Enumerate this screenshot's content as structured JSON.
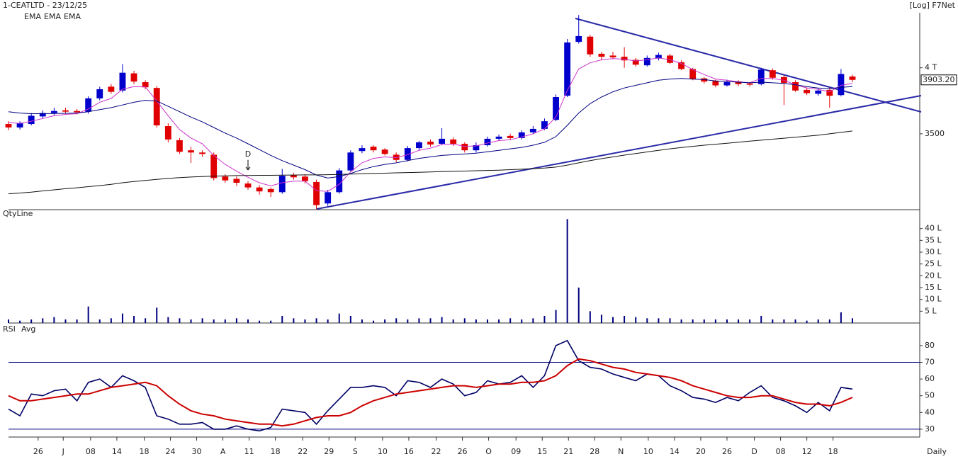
{
  "chart_data": [
    {
      "type": "candlestick",
      "title": "1-CEATLTD - 23/12/25",
      "subtitle": "[Log] F7Net",
      "log_scale": true,
      "ylim": [
        3002,
        4458
      ],
      "yticks": [
        {
          "value": 4000,
          "label": "4 T"
        },
        3500
      ],
      "up_color": "#0000cc",
      "down_color": "#e00000",
      "open": [
        3570,
        3545,
        3570,
        3625,
        3650,
        3670,
        3665,
        3660,
        3760,
        3850,
        3820,
        3955,
        3885,
        3840,
        3555,
        3455,
        3385,
        3370,
        3355,
        3210,
        3195,
        3165,
        3140,
        3130,
        3110,
        3220,
        3210,
        3175,
        3040,
        3110,
        3250,
        3380,
        3410,
        3390,
        3355,
        3320,
        3400,
        3445,
        3430,
        3460,
        3430,
        3385,
        3420,
        3465,
        3485,
        3470,
        3510,
        3535,
        3600,
        3780,
        4215,
        4260,
        4115,
        4100,
        4090,
        4065,
        4020,
        4075,
        4100,
        4045,
        3990,
        3915,
        3895,
        3860,
        3890,
        3875,
        3870,
        3980,
        3925,
        3885,
        3825,
        3795,
        3825,
        3785,
        3930
      ],
      "high": [
        3590,
        3590,
        3650,
        3670,
        3690,
        3690,
        3680,
        3775,
        3850,
        3870,
        4030,
        3975,
        3900,
        3855,
        3575,
        3470,
        3410,
        3385,
        3370,
        3225,
        3210,
        3180,
        3155,
        3140,
        3260,
        3235,
        3225,
        3190,
        3125,
        3265,
        3385,
        3420,
        3420,
        3400,
        3370,
        3415,
        3450,
        3460,
        3540,
        3475,
        3440,
        3440,
        3480,
        3495,
        3500,
        3525,
        3555,
        3610,
        3790,
        4240,
        4450,
        4275,
        4130,
        4130,
        4170,
        4080,
        4100,
        4125,
        4115,
        4060,
        4000,
        3925,
        3905,
        3905,
        3900,
        3885,
        4000,
        3995,
        3940,
        3900,
        3845,
        3840,
        3840,
        3990,
        3945
      ],
      "low": [
        3525,
        3530,
        3560,
        3610,
        3635,
        3645,
        3640,
        3645,
        3745,
        3795,
        3805,
        3870,
        3830,
        3545,
        3440,
        3360,
        3300,
        3340,
        3185,
        3170,
        3150,
        3125,
        3095,
        3080,
        3100,
        3190,
        3165,
        3005,
        3025,
        3100,
        3240,
        3365,
        3370,
        3350,
        3305,
        3310,
        3385,
        3410,
        3420,
        3415,
        3370,
        3370,
        3410,
        3450,
        3455,
        3460,
        3500,
        3525,
        3590,
        3770,
        4200,
        4090,
        4060,
        4070,
        4000,
        4010,
        4010,
        4060,
        4030,
        3980,
        3900,
        3875,
        3845,
        3850,
        3855,
        3850,
        3860,
        3905,
        3710,
        3810,
        3785,
        3780,
        3690,
        3775,
        3885
      ],
      "close": [
        3545,
        3575,
        3630,
        3650,
        3665,
        3660,
        3655,
        3760,
        3830,
        3810,
        3960,
        3890,
        3845,
        3560,
        3460,
        3375,
        3370,
        3360,
        3200,
        3185,
        3170,
        3140,
        3115,
        3110,
        3215,
        3205,
        3180,
        3030,
        3110,
        3250,
        3370,
        3400,
        3385,
        3360,
        3320,
        3400,
        3440,
        3425,
        3465,
        3430,
        3385,
        3420,
        3465,
        3480,
        3470,
        3510,
        3535,
        3590,
        3770,
        4210,
        4265,
        4110,
        4090,
        4085,
        4060,
        4025,
        4080,
        4105,
        4040,
        3990,
        3910,
        3890,
        3860,
        3885,
        3870,
        3865,
        3985,
        3920,
        3880,
        3820,
        3800,
        3820,
        3780,
        3950,
        3903.2
      ],
      "last_label": "3903.20",
      "annotation": "D",
      "annotation_index": 21,
      "series": [
        {
          "name": "EMA",
          "color": "#cc33cc",
          "values": [
            3580,
            3575,
            3590,
            3610,
            3630,
            3640,
            3645,
            3680,
            3730,
            3760,
            3830,
            3850,
            3848,
            3740,
            3630,
            3530,
            3470,
            3430,
            3350,
            3290,
            3245,
            3205,
            3170,
            3150,
            3170,
            3180,
            3180,
            3120,
            3115,
            3160,
            3240,
            3300,
            3330,
            3340,
            3335,
            3355,
            3385,
            3400,
            3425,
            3428,
            3412,
            3415,
            3435,
            3452,
            3458,
            3478,
            3500,
            3535,
            3620,
            3820,
            3990,
            4040,
            4065,
            4075,
            4070,
            4055,
            4065,
            4080,
            4065,
            4035,
            3985,
            3945,
            3910,
            3900,
            3888,
            3880,
            3915,
            3915,
            3900,
            3865,
            3840,
            3830,
            3810,
            3860,
            3875
          ]
        },
        {
          "name": "EMA",
          "color": "#000080",
          "values": [
            3660,
            3650,
            3645,
            3645,
            3647,
            3648,
            3650,
            3660,
            3675,
            3690,
            3710,
            3730,
            3745,
            3740,
            3700,
            3660,
            3620,
            3585,
            3545,
            3505,
            3470,
            3430,
            3390,
            3350,
            3315,
            3285,
            3255,
            3220,
            3200,
            3210,
            3230,
            3255,
            3275,
            3290,
            3300,
            3315,
            3330,
            3340,
            3350,
            3355,
            3360,
            3365,
            3375,
            3385,
            3395,
            3405,
            3420,
            3440,
            3480,
            3560,
            3650,
            3720,
            3770,
            3810,
            3840,
            3860,
            3880,
            3900,
            3910,
            3915,
            3910,
            3905,
            3895,
            3890,
            3885,
            3880,
            3885,
            3880,
            3875,
            3865,
            3850,
            3840,
            3835,
            3845,
            3850
          ]
        },
        {
          "name": "EMA",
          "color": "#111111",
          "values": [
            3100,
            3105,
            3110,
            3118,
            3125,
            3132,
            3138,
            3145,
            3152,
            3160,
            3170,
            3178,
            3185,
            3192,
            3198,
            3203,
            3207,
            3210,
            3213,
            3215,
            3216,
            3217,
            3218,
            3218,
            3219,
            3220,
            3221,
            3221,
            3222,
            3224,
            3226,
            3228,
            3230,
            3232,
            3234,
            3236,
            3238,
            3240,
            3242,
            3244,
            3246,
            3248,
            3250,
            3252,
            3255,
            3258,
            3262,
            3266,
            3272,
            3285,
            3300,
            3315,
            3328,
            3340,
            3352,
            3363,
            3374,
            3385,
            3395,
            3404,
            3412,
            3420,
            3427,
            3434,
            3441,
            3448,
            3455,
            3462,
            3469,
            3476,
            3483,
            3490,
            3500,
            3510,
            3520
          ]
        }
      ]
    },
    {
      "type": "bar",
      "ylim": [
        0,
        44.4
      ],
      "yticks": [
        {
          "value": 40,
          "label": "40 L"
        },
        {
          "value": 35,
          "label": "35 L"
        },
        {
          "value": 30,
          "label": "30 L"
        },
        {
          "value": 25,
          "label": "25 L"
        },
        {
          "value": 20,
          "label": "20 L"
        },
        {
          "value": 15,
          "label": "15 L"
        },
        {
          "value": 10,
          "label": "10 L"
        },
        {
          "value": 5,
          "label": "5 L"
        }
      ],
      "series": [
        {
          "name": "QtyLine",
          "color": "#000080",
          "values": [
            1.5,
            1,
            1.5,
            2,
            2.5,
            1.5,
            1.5,
            7,
            1.5,
            2,
            4,
            3,
            2,
            6.5,
            2.5,
            2,
            1.5,
            2,
            1.5,
            1.5,
            2,
            1.5,
            1,
            1,
            3,
            2,
            1.5,
            2,
            1.5,
            4,
            3,
            1.5,
            1,
            1.5,
            2,
            1.5,
            2,
            2,
            2.5,
            1.5,
            2,
            1.5,
            1.5,
            1.5,
            2,
            1.5,
            2,
            3,
            5.5,
            44,
            15,
            5,
            3.5,
            2.5,
            3,
            2.5,
            2,
            2,
            2,
            1.5,
            1.5,
            1.5,
            1.5,
            1.5,
            1.5,
            1.5,
            3,
            1.5,
            1.5,
            1.5,
            1,
            1.5,
            1.5,
            4.5,
            2
          ]
        }
      ]
    },
    {
      "type": "line",
      "ylim": [
        25.3,
        84.2
      ],
      "yticks": [
        80,
        70,
        60,
        50,
        40,
        30
      ],
      "hlines": [
        70,
        30
      ],
      "xticks": [
        {
          "value": 2.6,
          "label": "26"
        },
        {
          "value": 4.8,
          "label": "J"
        },
        {
          "value": 7.2,
          "label": "08"
        },
        {
          "value": 9.5,
          "label": "14"
        },
        {
          "value": 11.9,
          "label": "18"
        },
        {
          "value": 14.2,
          "label": "24"
        },
        {
          "value": 16.5,
          "label": "30"
        },
        {
          "value": 18.8,
          "label": "A"
        },
        {
          "value": 21.1,
          "label": "11"
        },
        {
          "value": 23.4,
          "label": "18"
        },
        {
          "value": 25.8,
          "label": "22"
        },
        {
          "value": 28.1,
          "label": "29"
        },
        {
          "value": 30.4,
          "label": "S"
        },
        {
          "value": 32.8,
          "label": "10"
        },
        {
          "value": 35.1,
          "label": "16"
        },
        {
          "value": 37.5,
          "label": "22"
        },
        {
          "value": 39.8,
          "label": "26"
        },
        {
          "value": 42.1,
          "label": "O"
        },
        {
          "value": 44.5,
          "label": "09"
        },
        {
          "value": 46.8,
          "label": "15"
        },
        {
          "value": 49.1,
          "label": "21"
        },
        {
          "value": 51.4,
          "label": "28"
        },
        {
          "value": 53.7,
          "label": "N"
        },
        {
          "value": 56.1,
          "label": "10"
        },
        {
          "value": 58.4,
          "label": "14"
        },
        {
          "value": 60.7,
          "label": "20"
        },
        {
          "value": 63,
          "label": "26"
        },
        {
          "value": 65.4,
          "label": "D"
        },
        {
          "value": 67.7,
          "label": "08"
        },
        {
          "value": 70,
          "label": "12"
        },
        {
          "value": 72.3,
          "label": "18"
        }
      ],
      "xlabel": "Daily",
      "series": [
        {
          "name": "RSI",
          "color": "#000066",
          "values": [
            42,
            38,
            51,
            50,
            53,
            54,
            47,
            58,
            60,
            55,
            62,
            59,
            55,
            38,
            36,
            33,
            33,
            34,
            30,
            30,
            32,
            30,
            29,
            31,
            42,
            41,
            40,
            33,
            41,
            48,
            55,
            55,
            56,
            55,
            50,
            59,
            58,
            55,
            60,
            57,
            50,
            52,
            59,
            57,
            58,
            62,
            55,
            62,
            80,
            83,
            71,
            67,
            66,
            63,
            61,
            59,
            63,
            62,
            56,
            53,
            49,
            48,
            46,
            49,
            47,
            52,
            56,
            49,
            47,
            44,
            40,
            46,
            41,
            55,
            54
          ]
        },
        {
          "name": "Avg",
          "color": "#cc0000",
          "values": [
            50,
            47,
            47,
            48,
            49,
            50,
            51,
            51,
            53,
            55,
            56,
            57,
            58,
            56,
            50,
            45,
            41,
            39,
            38,
            36,
            35,
            34,
            33,
            33,
            32,
            33,
            35,
            37,
            38,
            38,
            40,
            44,
            47,
            49,
            51,
            52,
            53,
            54,
            55,
            56,
            56,
            55,
            56,
            57,
            57,
            58,
            58,
            59,
            62,
            68,
            72,
            71,
            69,
            67,
            66,
            64,
            63,
            62,
            61,
            59,
            56,
            54,
            52,
            50,
            49,
            49,
            50,
            50,
            48,
            46,
            45,
            45,
            44,
            46,
            49
          ]
        }
      ]
    }
  ]
}
